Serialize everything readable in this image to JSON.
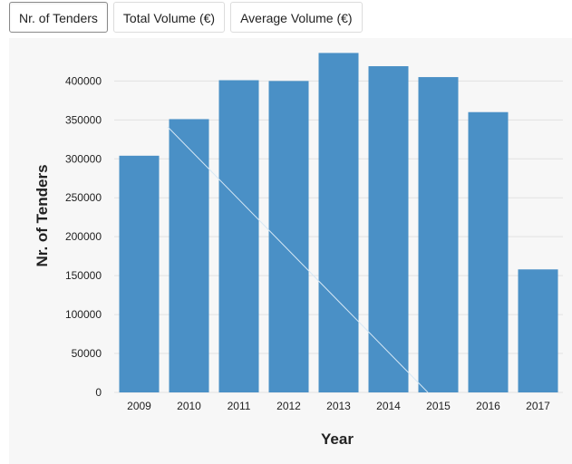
{
  "tabs": [
    {
      "label": "Nr. of Tenders",
      "active": true
    },
    {
      "label": "Total Volume (€)",
      "active": false
    },
    {
      "label": "Average Volume (€)",
      "active": false
    }
  ],
  "colors": {
    "bar": "#4a90c6",
    "grid": "#e2e2e2",
    "panel": "#f7f7f7"
  },
  "chart_data": {
    "type": "bar",
    "title": "",
    "xlabel": "Year",
    "ylabel": "Nr. of Tenders",
    "categories": [
      "2009",
      "2010",
      "2011",
      "2012",
      "2013",
      "2014",
      "2015",
      "2016",
      "2017"
    ],
    "values": [
      304000,
      351000,
      401000,
      400000,
      436000,
      419000,
      405000,
      360000,
      158000
    ],
    "ylim": [
      0,
      440000
    ],
    "yticks": [
      0,
      50000,
      100000,
      150000,
      200000,
      250000,
      300000,
      350000,
      400000
    ],
    "ytick_labels": [
      "0",
      "50000",
      "100000",
      "150000",
      "200000",
      "250000",
      "300000",
      "350000",
      "400000"
    ],
    "grid": true,
    "legend": "none"
  }
}
